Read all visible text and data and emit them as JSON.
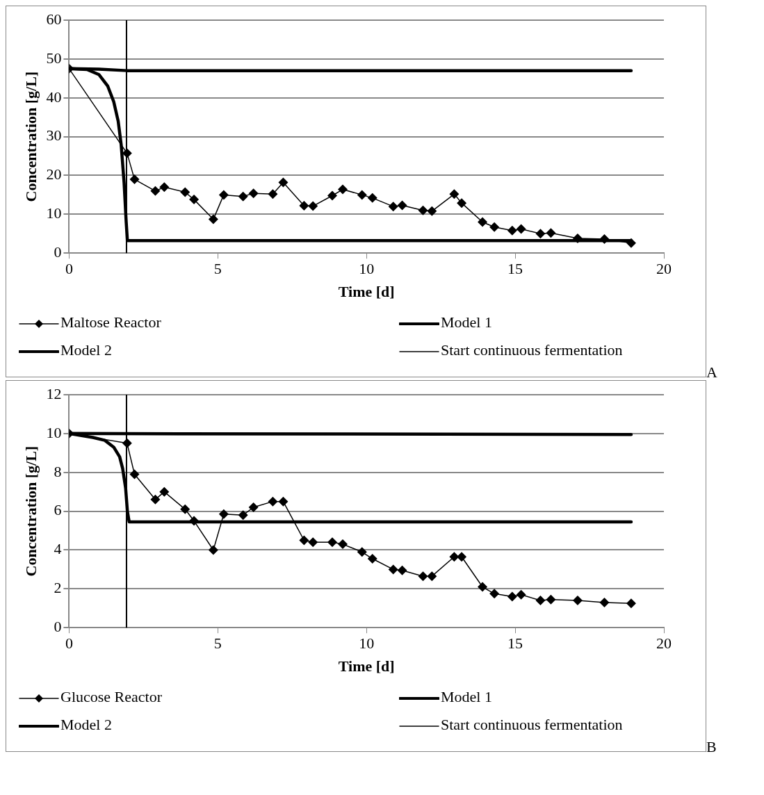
{
  "chart_data": [
    {
      "type": "line",
      "xlabel": "Time [d]",
      "ylabel": "Concentration [g/L]",
      "xlim": [
        0,
        20
      ],
      "xticks": [
        0,
        5,
        10,
        15,
        20
      ],
      "ylim": [
        0,
        60
      ],
      "yticks": [
        0,
        10,
        20,
        30,
        40,
        50,
        60
      ],
      "grid": "y",
      "legend": "bottom",
      "annotations": [
        "A"
      ],
      "series": [
        {
          "name": "Maltose Reactor",
          "color": "#000000",
          "marker": "diamond",
          "x": [
            0,
            1.95,
            2.2,
            2.9,
            3.2,
            3.9,
            4.2,
            4.85,
            5.2,
            5.85,
            6.2,
            6.85,
            7.2,
            7.9,
            8.2,
            8.85,
            9.2,
            9.85,
            10.2,
            10.9,
            11.2,
            11.9,
            12.2,
            12.95,
            13.2,
            13.9,
            14.3,
            14.9,
            15.2,
            15.85,
            16.2,
            17.1,
            18,
            18.9
          ],
          "values": [
            47.5,
            25.7,
            19,
            16,
            17,
            15.7,
            13.8,
            8.7,
            15,
            14.6,
            15.4,
            15.2,
            18.2,
            12.2,
            12.1,
            14.8,
            16.4,
            15,
            14.2,
            12,
            12.3,
            11,
            10.8,
            15.2,
            12.9,
            8,
            6.7,
            5.8,
            6.2,
            5,
            5.2,
            3.8,
            3.6,
            2.6
          ]
        },
        {
          "name": "Model 1",
          "color": "#000000",
          "marker": "none",
          "x": [
            0,
            1,
            1.95,
            18.9
          ],
          "values": [
            47.5,
            47.4,
            47,
            47
          ]
        },
        {
          "name": "Model 2",
          "color": "#000000",
          "marker": "none",
          "x": [
            0,
            0.6,
            1,
            1.3,
            1.5,
            1.65,
            1.75,
            1.85,
            1.92,
            1.96,
            18.9
          ],
          "values": [
            47.5,
            47.3,
            46,
            43,
            39,
            34,
            28,
            18,
            8,
            3.2,
            3.2
          ]
        }
      ],
      "ref_lines": [
        {
          "axis": "x",
          "value": 1.93,
          "label": "Start continuous fermentation",
          "color": "#000000"
        }
      ]
    },
    {
      "type": "line",
      "xlabel": "Time [d]",
      "ylabel": "Concentration [g/L]",
      "xlim": [
        0,
        20
      ],
      "xticks": [
        0,
        5,
        10,
        15,
        20
      ],
      "ylim": [
        0,
        12
      ],
      "yticks": [
        0,
        2,
        4,
        6,
        8,
        10,
        12
      ],
      "grid": "y",
      "legend": "bottom",
      "annotations": [
        "B"
      ],
      "series": [
        {
          "name": "Glucose Reactor",
          "color": "#000000",
          "marker": "diamond",
          "x": [
            0,
            1.95,
            2.2,
            2.9,
            3.2,
            3.9,
            4.2,
            4.85,
            5.2,
            5.85,
            6.2,
            6.85,
            7.2,
            7.9,
            8.2,
            8.85,
            9.2,
            9.85,
            10.2,
            10.9,
            11.2,
            11.9,
            12.2,
            12.95,
            13.2,
            13.9,
            14.3,
            14.9,
            15.2,
            15.85,
            16.2,
            17.1,
            18,
            18.9
          ],
          "values": [
            10,
            9.5,
            7.9,
            6.6,
            7,
            6.1,
            5.5,
            4,
            5.85,
            5.8,
            6.2,
            6.5,
            6.5,
            4.5,
            4.4,
            4.4,
            4.3,
            3.9,
            3.55,
            3,
            2.95,
            2.65,
            2.65,
            3.65,
            3.65,
            2.1,
            1.75,
            1.6,
            1.7,
            1.4,
            1.45,
            1.4,
            1.3,
            1.25
          ]
        },
        {
          "name": "Model 1",
          "color": "#000000",
          "marker": "none",
          "x": [
            0,
            18.9
          ],
          "values": [
            10,
            9.95
          ]
        },
        {
          "name": "Model 2",
          "color": "#000000",
          "marker": "none",
          "x": [
            0,
            0.8,
            1.2,
            1.5,
            1.7,
            1.8,
            1.9,
            1.96,
            2.02,
            18.9
          ],
          "values": [
            10,
            9.8,
            9.65,
            9.3,
            8.8,
            8.2,
            7.2,
            6,
            5.45,
            5.45
          ]
        }
      ],
      "ref_lines": [
        {
          "axis": "x",
          "value": 1.93,
          "label": "Start continuous fermentation",
          "color": "#000000"
        }
      ]
    }
  ]
}
